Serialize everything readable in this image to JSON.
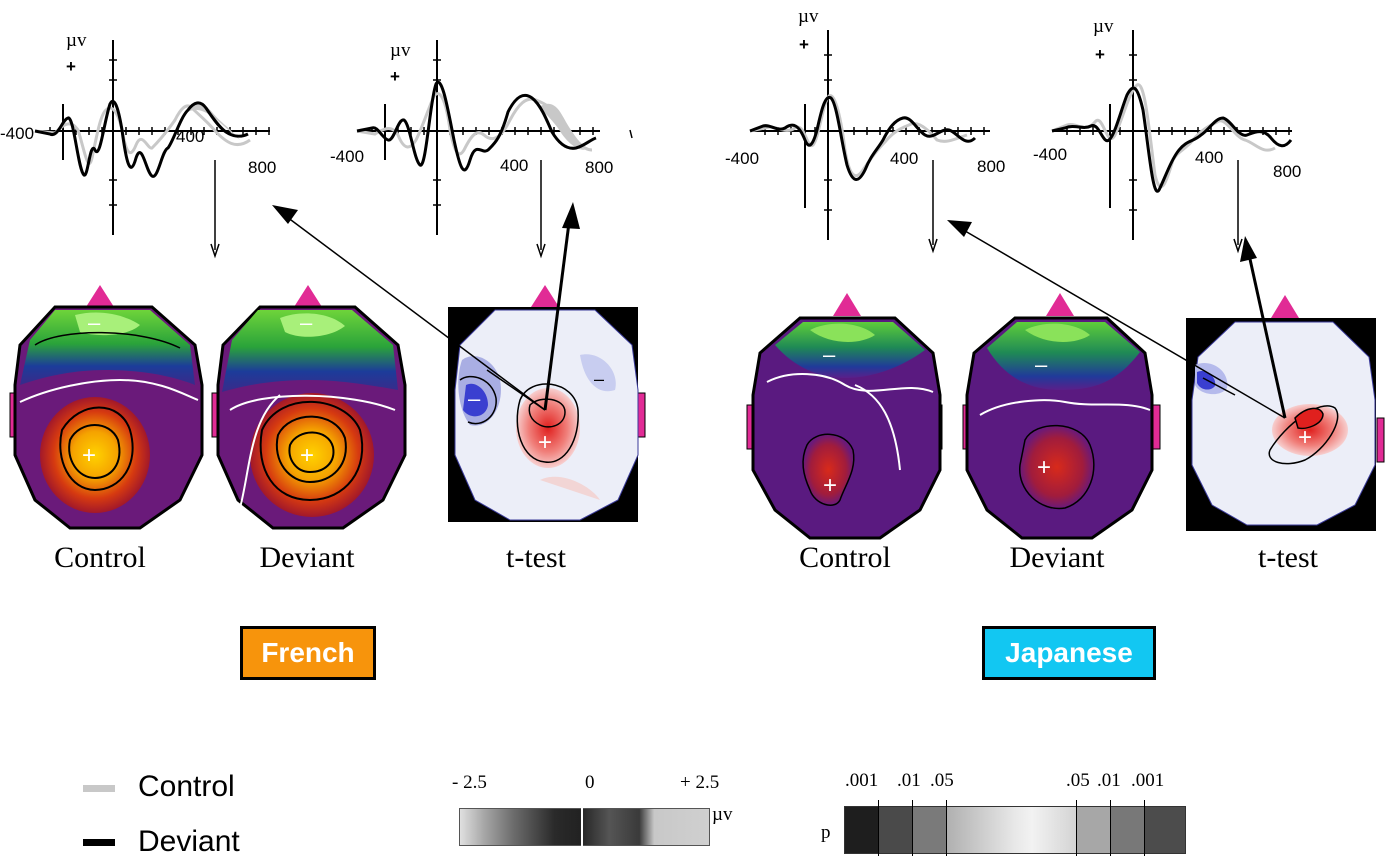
{
  "axis": {
    "unit": "µv",
    "plus": "+",
    "ticks": [
      "-400",
      "400",
      "800"
    ]
  },
  "groups": [
    {
      "name": "French",
      "color": "#f7940c",
      "maps": [
        "Control",
        "Deviant",
        "t-test"
      ]
    },
    {
      "name": "Japanese",
      "color": "#12c7f2",
      "maps": [
        "Control",
        "Deviant",
        "t-test"
      ]
    }
  ],
  "legend": {
    "control": "Control",
    "deviant": "Deviant",
    "control_color": "#c8c8c8",
    "deviant_color": "#000000"
  },
  "voltage_scale": {
    "min": "- 2.5",
    "mid": "0",
    "max": "+ 2.5",
    "unit": "µv"
  },
  "p_scale": {
    "label": "p",
    "ticks": [
      ".001",
      ".01",
      ".05",
      ".05",
      ".01",
      ".001"
    ]
  },
  "markers": {
    "plus": "+",
    "minus": "–"
  }
}
